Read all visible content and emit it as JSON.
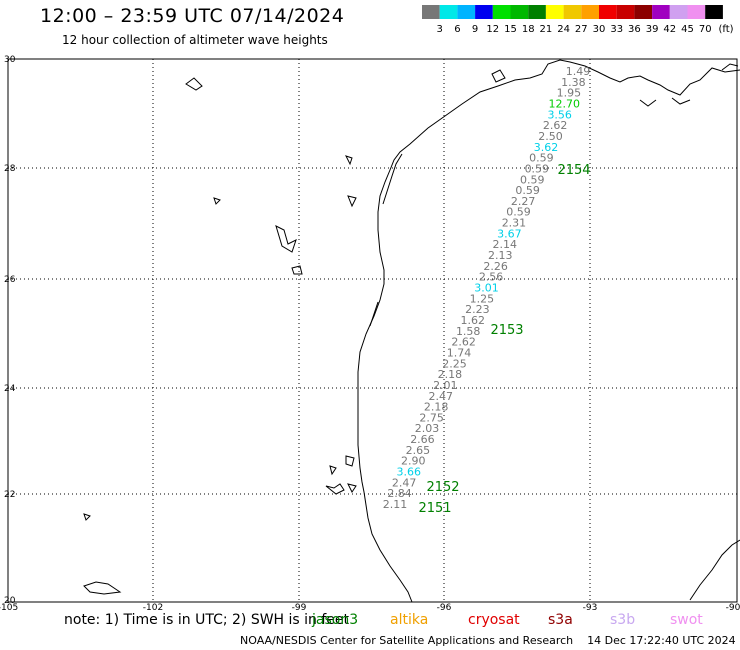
{
  "header": {
    "title": "12:00 – 23:59 UTC 07/14/2024",
    "subtitle": "12 hour collection of altimeter wave heights"
  },
  "legend": {
    "ticks": [
      "3",
      "6",
      "9",
      "12",
      "15",
      "18",
      "21",
      "24",
      "27",
      "30",
      "33",
      "36",
      "39",
      "42",
      "45",
      "70"
    ],
    "unit": "(ft)",
    "colors": [
      "#777777",
      "#00e8e8",
      "#00b4ff",
      "#0000f0",
      "#00e000",
      "#00b800",
      "#008000",
      "#ffff00",
      "#f0c800",
      "#ffa000",
      "#f00000",
      "#c80000",
      "#8c0000",
      "#a000c0",
      "#d0a0f0",
      "#f090f0",
      "#000000"
    ]
  },
  "axes": {
    "x_ticks": [
      "-105",
      "-102",
      "-99",
      "-96",
      "-93",
      "-90"
    ],
    "y_ticks": [
      "30",
      "28",
      "26",
      "24",
      "22",
      "20"
    ]
  },
  "passes": [
    {
      "id": "2154",
      "color": "#008000"
    },
    {
      "id": "2153",
      "color": "#008000"
    },
    {
      "id": "2152",
      "color": "#008000"
    },
    {
      "id": "2151",
      "color": "#008000"
    }
  ],
  "wave_heights": [
    {
      "v": "1.49",
      "c": "#777777"
    },
    {
      "v": "1.38",
      "c": "#777777"
    },
    {
      "v": "1.95",
      "c": "#777777"
    },
    {
      "v": "12.70",
      "c": "#00cc00"
    },
    {
      "v": "3.56",
      "c": "#00d0e8"
    },
    {
      "v": "2.62",
      "c": "#777777"
    },
    {
      "v": "2.50",
      "c": "#777777"
    },
    {
      "v": "3.62",
      "c": "#00d0e8"
    },
    {
      "v": "0.59",
      "c": "#777777"
    },
    {
      "v": "0.59",
      "c": "#777777"
    },
    {
      "v": "0.59",
      "c": "#777777"
    },
    {
      "v": "0.59",
      "c": "#777777"
    },
    {
      "v": "2.27",
      "c": "#777777"
    },
    {
      "v": "0.59",
      "c": "#777777"
    },
    {
      "v": "2.31",
      "c": "#777777"
    },
    {
      "v": "3.67",
      "c": "#00d0e8"
    },
    {
      "v": "2.14",
      "c": "#777777"
    },
    {
      "v": "2.13",
      "c": "#777777"
    },
    {
      "v": "2.26",
      "c": "#777777"
    },
    {
      "v": "2.56",
      "c": "#777777"
    },
    {
      "v": "3.01",
      "c": "#00d0e8"
    },
    {
      "v": "1.25",
      "c": "#777777"
    },
    {
      "v": "2.23",
      "c": "#777777"
    },
    {
      "v": "1.62",
      "c": "#777777"
    },
    {
      "v": "1.58",
      "c": "#777777"
    },
    {
      "v": "2.62",
      "c": "#777777"
    },
    {
      "v": "1.74",
      "c": "#777777"
    },
    {
      "v": "2.25",
      "c": "#777777"
    },
    {
      "v": "2.18",
      "c": "#777777"
    },
    {
      "v": "2.01",
      "c": "#777777"
    },
    {
      "v": "2.47",
      "c": "#777777"
    },
    {
      "v": "2.18",
      "c": "#777777"
    },
    {
      "v": "2.75",
      "c": "#777777"
    },
    {
      "v": "2.03",
      "c": "#777777"
    },
    {
      "v": "2.66",
      "c": "#777777"
    },
    {
      "v": "2.65",
      "c": "#777777"
    },
    {
      "v": "2.90",
      "c": "#777777"
    },
    {
      "v": "3.66",
      "c": "#00d0e8"
    },
    {
      "v": "2.47",
      "c": "#777777"
    },
    {
      "v": "2.84",
      "c": "#777777"
    },
    {
      "v": "2.11",
      "c": "#777777"
    }
  ],
  "footer": {
    "note": "note: 1) Time is in UTC; 2) SWH is in feet",
    "satellites": [
      {
        "name": "jason3",
        "color": "#008000"
      },
      {
        "name": "altika",
        "color": "#f0a000"
      },
      {
        "name": "cryosat",
        "color": "#e00000"
      },
      {
        "name": "s3a",
        "color": "#900000"
      },
      {
        "name": "s3b",
        "color": "#c8a8f0"
      },
      {
        "name": "swot",
        "color": "#f090f0"
      }
    ],
    "credit": "NOAA/NESDIS Center for Satellite Applications and Research",
    "timestamp": "14 Dec 17:22:40 UTC 2024"
  }
}
